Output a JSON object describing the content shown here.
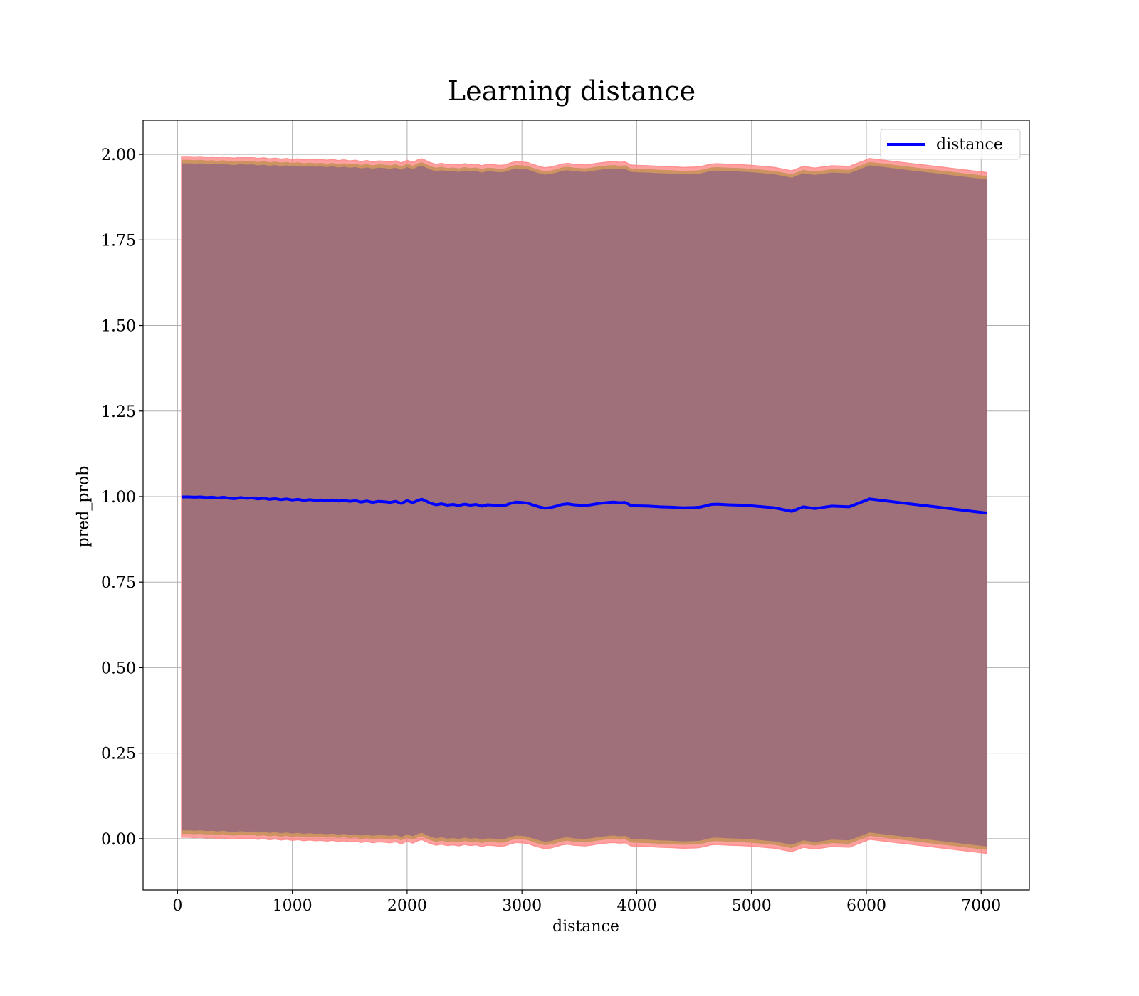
{
  "chart_data": {
    "type": "line",
    "title": "Learning distance",
    "xlabel": "distance",
    "ylabel": "pred_prob",
    "xlim": [
      -300,
      7420
    ],
    "ylim": [
      -0.15,
      2.1
    ],
    "xticks": [
      0,
      1000,
      2000,
      3000,
      4000,
      5000,
      6000,
      7000
    ],
    "xtick_labels": [
      "0",
      "1000",
      "2000",
      "3000",
      "4000",
      "5000",
      "6000",
      "7000"
    ],
    "yticks": [
      0.0,
      0.25,
      0.5,
      0.75,
      1.0,
      1.25,
      1.5,
      1.75,
      2.0
    ],
    "ytick_labels": [
      "0.00",
      "0.25",
      "0.50",
      "0.75",
      "1.00",
      "1.25",
      "1.50",
      "1.75",
      "2.00"
    ],
    "grid": true,
    "legend_position": "top-right",
    "colors": {
      "line": "#0000ff",
      "band_outer": "#ff8080",
      "band_outer_edge": "#ff9090",
      "band_mid": "#c8915a",
      "band_inner": "#a0707a",
      "grid": "#b0b0b0"
    },
    "series": [
      {
        "name": "distance",
        "x": [
          35,
          100,
          150,
          200,
          250,
          300,
          350,
          400,
          450,
          500,
          550,
          600,
          650,
          700,
          750,
          800,
          850,
          900,
          950,
          1000,
          1050,
          1100,
          1150,
          1200,
          1250,
          1300,
          1350,
          1400,
          1450,
          1500,
          1550,
          1600,
          1650,
          1700,
          1750,
          1800,
          1850,
          1900,
          1950,
          2000,
          2050,
          2100,
          2130,
          2200,
          2250,
          2300,
          2350,
          2400,
          2450,
          2500,
          2550,
          2600,
          2650,
          2700,
          2750,
          2800,
          2850,
          2900,
          2950,
          3000,
          3050,
          3100,
          3150,
          3200,
          3250,
          3300,
          3350,
          3400,
          3450,
          3500,
          3550,
          3600,
          3650,
          3700,
          3750,
          3800,
          3850,
          3900,
          3950,
          4000,
          4100,
          4200,
          4300,
          4400,
          4500,
          4550,
          4650,
          4700,
          4800,
          4900,
          5000,
          5100,
          5200,
          5350,
          5450,
          5550,
          5700,
          5850,
          6030,
          6200,
          6400,
          6600,
          6800,
          7050
        ],
        "y": [
          0.999,
          0.999,
          0.998,
          0.999,
          0.997,
          0.998,
          0.996,
          0.998,
          0.995,
          0.994,
          0.997,
          0.995,
          0.996,
          0.993,
          0.995,
          0.992,
          0.994,
          0.991,
          0.993,
          0.99,
          0.992,
          0.989,
          0.991,
          0.989,
          0.99,
          0.988,
          0.99,
          0.987,
          0.989,
          0.986,
          0.988,
          0.984,
          0.987,
          0.983,
          0.986,
          0.985,
          0.983,
          0.986,
          0.98,
          0.988,
          0.982,
          0.99,
          0.992,
          0.981,
          0.976,
          0.979,
          0.975,
          0.977,
          0.974,
          0.978,
          0.975,
          0.977,
          0.972,
          0.976,
          0.975,
          0.973,
          0.974,
          0.98,
          0.984,
          0.983,
          0.981,
          0.975,
          0.97,
          0.966,
          0.968,
          0.972,
          0.977,
          0.979,
          0.976,
          0.975,
          0.974,
          0.976,
          0.979,
          0.981,
          0.983,
          0.984,
          0.982,
          0.983,
          0.974,
          0.973,
          0.972,
          0.97,
          0.969,
          0.967,
          0.968,
          0.969,
          0.977,
          0.978,
          0.976,
          0.975,
          0.973,
          0.97,
          0.967,
          0.957,
          0.97,
          0.965,
          0.972,
          0.97,
          0.993,
          0.986,
          0.978,
          0.97,
          0.962,
          0.952
        ]
      }
    ],
    "band_halfwidths": {
      "outer": 0.995,
      "mid": 0.985,
      "inner": 0.975
    }
  }
}
